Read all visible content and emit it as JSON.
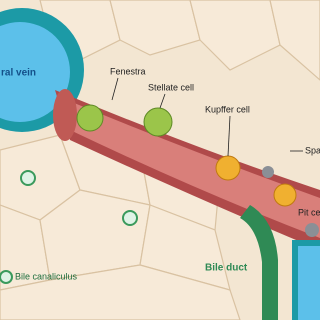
{
  "labels": [
    "ral vein",
    "Fenestra",
    "Stellate cell",
    "Kupffer cell",
    "Spa",
    "Pit ce",
    "Bile canaliculus",
    "Bile duct"
  ]
}
